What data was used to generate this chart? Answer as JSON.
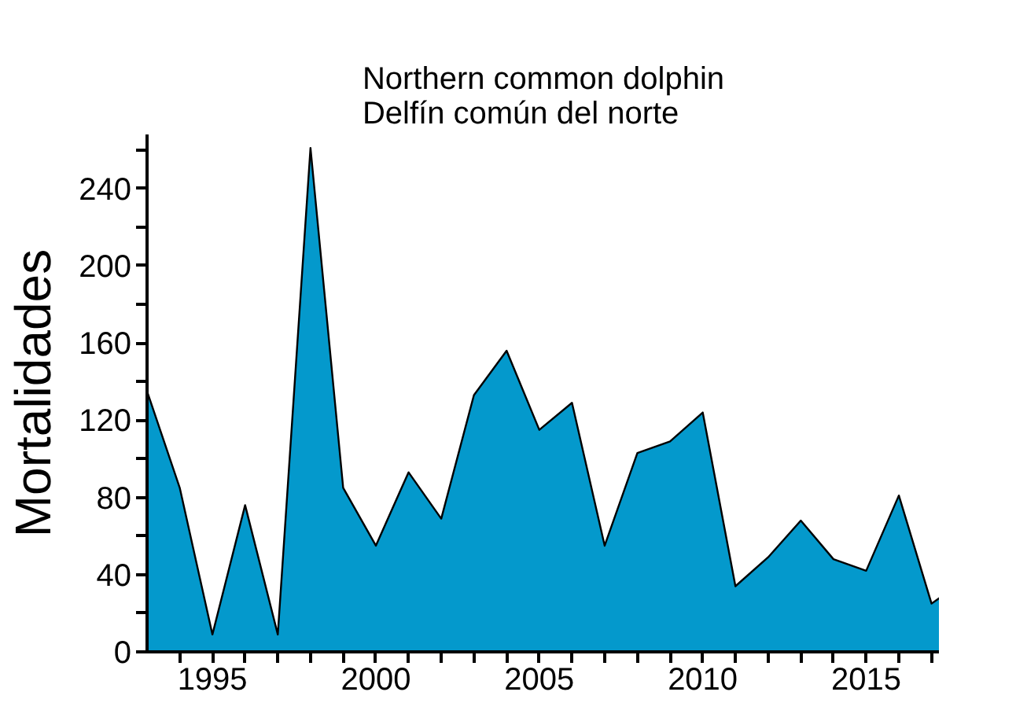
{
  "chart_data": {
    "type": "area",
    "title": "Northern common dolphin\nDelfín común del norte",
    "ylabel": "Mortalidades",
    "x": [
      1993,
      1994,
      1995,
      1996,
      1997,
      1998,
      1999,
      2000,
      2001,
      2002,
      2003,
      2004,
      2005,
      2006,
      2007,
      2008,
      2009,
      2010,
      2011,
      2012,
      2013,
      2014,
      2015,
      2016,
      2017,
      2017.25
    ],
    "series": [
      {
        "color": "#0499cc",
        "values": [
          135,
          85,
          9,
          76,
          9,
          261,
          85,
          55,
          93,
          69,
          133,
          156,
          115,
          129,
          55,
          103,
          109,
          124,
          34,
          49,
          68,
          48,
          42,
          81,
          25,
          28
        ]
      }
    ],
    "xlim": [
      1993,
      2017.25
    ],
    "xticks": [
      {
        "value": 1994,
        "label": null
      },
      1995,
      {
        "value": 1996,
        "label": null
      },
      {
        "value": 1997,
        "label": null
      },
      {
        "value": 1998,
        "label": null
      },
      {
        "value": 1999,
        "label": null
      },
      2000,
      {
        "value": 2001,
        "label": null
      },
      {
        "value": 2002,
        "label": null
      },
      {
        "value": 2003,
        "label": null
      },
      {
        "value": 2004,
        "label": null
      },
      2005,
      {
        "value": 2006,
        "label": null
      },
      {
        "value": 2007,
        "label": null
      },
      {
        "value": 2008,
        "label": null
      },
      {
        "value": 2009,
        "label": null
      },
      2010,
      {
        "value": 2011,
        "label": null
      },
      {
        "value": 2012,
        "label": null
      },
      {
        "value": 2013,
        "label": null
      },
      {
        "value": 2014,
        "label": null
      },
      2015,
      {
        "value": 2016,
        "label": null
      },
      {
        "value": 2017,
        "label": null
      }
    ],
    "ylim": [
      0,
      268
    ],
    "yticks": [
      0,
      {
        "value": 20,
        "label": null
      },
      40,
      {
        "value": 60,
        "label": null
      },
      80,
      {
        "value": 100,
        "label": null
      },
      120,
      {
        "value": 140,
        "label": null
      },
      160,
      {
        "value": 180,
        "label": null
      },
      200,
      {
        "value": 220,
        "label": null
      },
      240,
      {
        "value": 260,
        "label": null
      }
    ],
    "grid": false
  }
}
